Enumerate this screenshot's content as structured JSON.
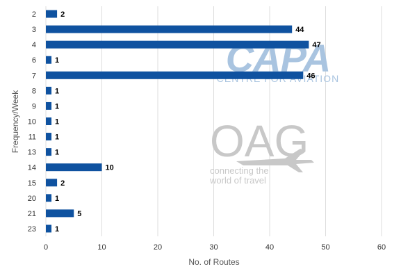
{
  "chart_data": {
    "type": "bar",
    "orientation": "horizontal",
    "categories": [
      "2",
      "3",
      "4",
      "6",
      "7",
      "8",
      "9",
      "10",
      "11",
      "13",
      "14",
      "15",
      "20",
      "21",
      "23"
    ],
    "values": [
      2,
      44,
      47,
      1,
      46,
      1,
      1,
      1,
      1,
      1,
      10,
      2,
      1,
      5,
      1
    ],
    "xlabel": "No. of Routes",
    "ylabel": "Frequency/Week",
    "xlim": [
      0,
      60
    ],
    "xticks": [
      0,
      10,
      20,
      30,
      40,
      50,
      60
    ],
    "grid": "vertical",
    "data_labels": true,
    "bar_color": "#0f52a0"
  },
  "watermarks": {
    "capa_title": "CAPA",
    "capa_subtitle": "CENTRE FOR AVIATION",
    "oag_title": "OAG",
    "oag_tagline_1": "connecting the",
    "oag_tagline_2": "world of travel"
  },
  "colors": {
    "capa": "#a9c4e0",
    "oag": "#c8c8c8",
    "grid": "#dddddd"
  }
}
